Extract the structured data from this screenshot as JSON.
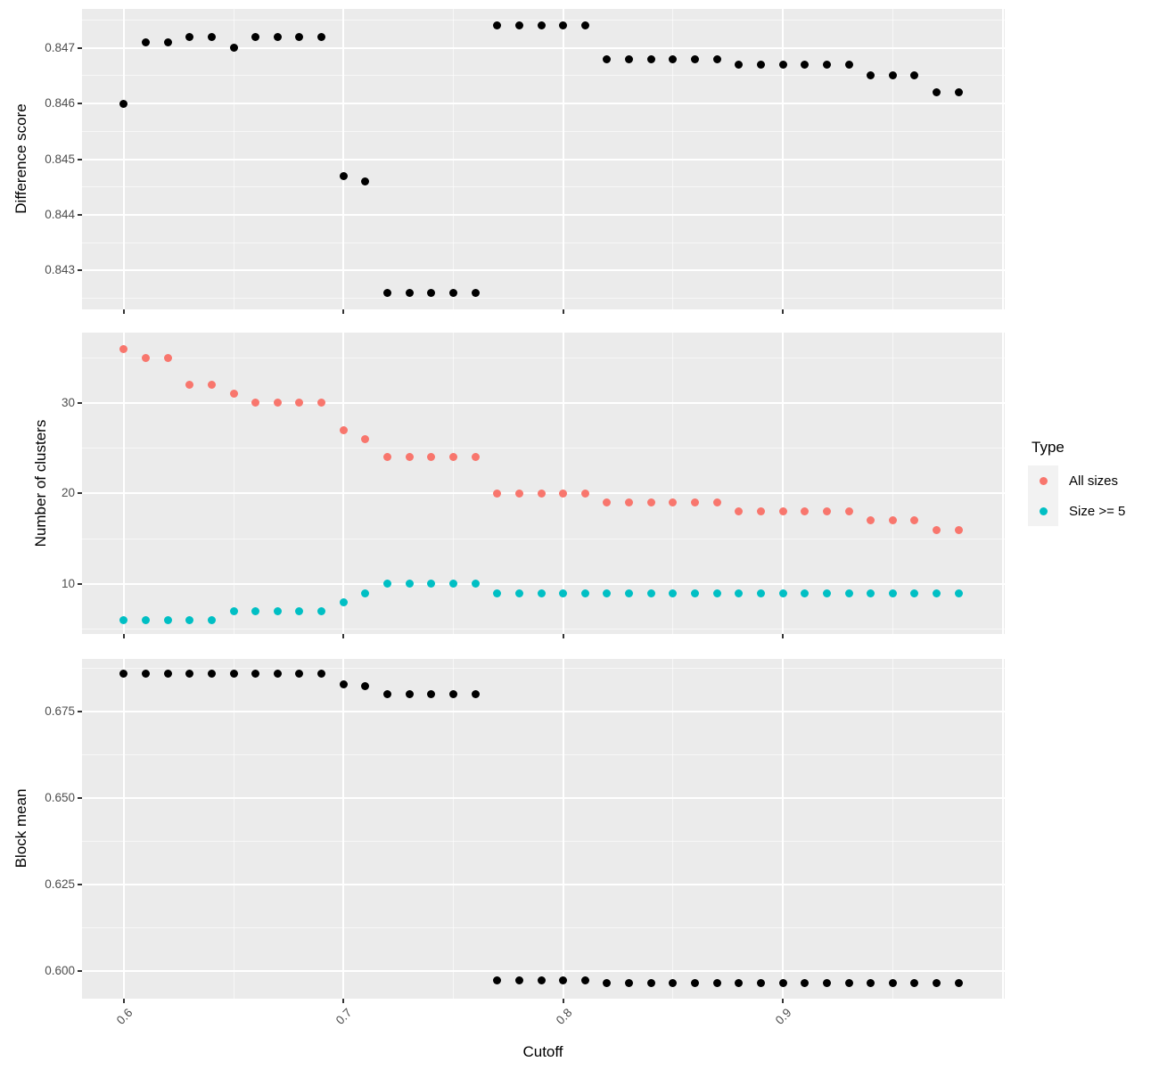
{
  "figure": {
    "bg": "#FFFFFF",
    "panel_bg": "#EBEBEB",
    "grid_color": "#FFFFFF",
    "tick_color": "#333333",
    "tick_label_color": "#4D4D4D",
    "point_color_default": "#000000"
  },
  "x_axis": {
    "label": "Cutoff",
    "lim": [
      0.581,
      1.001
    ],
    "tick_values": [
      0.6,
      0.7,
      0.8,
      0.9
    ],
    "tick_labels": [
      "0.6",
      "0.7",
      "0.8",
      "0.9"
    ],
    "major": [
      0.6,
      0.7,
      0.8,
      0.9,
      1.0
    ],
    "minor": [
      0.65,
      0.75,
      0.85,
      0.95
    ]
  },
  "legend": {
    "title": "Type",
    "entries": [
      {
        "label": "All sizes",
        "color": "#F8766D"
      },
      {
        "label": "Size >= 5",
        "color": "#00BFC4"
      }
    ]
  },
  "chart_data": [
    {
      "id": "difference_score",
      "type": "scatter",
      "ylabel": "Difference score",
      "ylim": [
        0.8423,
        0.8477
      ],
      "ytick_values": [
        0.843,
        0.844,
        0.845,
        0.846,
        0.847
      ],
      "ytick_labels": [
        "0.843",
        "0.844",
        "0.845",
        "0.846",
        "0.847"
      ],
      "yminor": [
        0.8425,
        0.8435,
        0.8445,
        0.8455,
        0.8465,
        0.8475
      ],
      "x": [
        0.6,
        0.61,
        0.62,
        0.63,
        0.64,
        0.65,
        0.66,
        0.67,
        0.68,
        0.69,
        0.7,
        0.71,
        0.72,
        0.73,
        0.74,
        0.75,
        0.76,
        0.77,
        0.78,
        0.79,
        0.8,
        0.81,
        0.82,
        0.83,
        0.84,
        0.85,
        0.86,
        0.87,
        0.88,
        0.89,
        0.9,
        0.91,
        0.92,
        0.93,
        0.94,
        0.95,
        0.96,
        0.97,
        0.98
      ],
      "series": [
        {
          "name": "Difference score",
          "color": "#000000",
          "values": [
            0.846,
            0.8471,
            0.8471,
            0.8472,
            0.8472,
            0.847,
            0.8472,
            0.8472,
            0.8472,
            0.8472,
            0.8447,
            0.8446,
            0.8426,
            0.8426,
            0.8426,
            0.8426,
            0.8426,
            0.8474,
            0.8474,
            0.8474,
            0.8474,
            0.8474,
            0.8468,
            0.8468,
            0.8468,
            0.8468,
            0.8468,
            0.8468,
            0.8467,
            0.8467,
            0.8467,
            0.8467,
            0.8467,
            0.8467,
            0.8465,
            0.8465,
            0.8465,
            0.8462,
            0.8462
          ]
        }
      ]
    },
    {
      "id": "number_of_clusters",
      "type": "scatter",
      "ylabel": "Number of clusters",
      "ylim": [
        4.48,
        37.78
      ],
      "ytick_values": [
        10,
        20,
        30
      ],
      "ytick_labels": [
        "10",
        "20",
        "30"
      ],
      "yminor": [
        5,
        15,
        25,
        35
      ],
      "x": [
        0.6,
        0.61,
        0.62,
        0.63,
        0.64,
        0.65,
        0.66,
        0.67,
        0.68,
        0.69,
        0.7,
        0.71,
        0.72,
        0.73,
        0.74,
        0.75,
        0.76,
        0.77,
        0.78,
        0.79,
        0.8,
        0.81,
        0.82,
        0.83,
        0.84,
        0.85,
        0.86,
        0.87,
        0.88,
        0.89,
        0.9,
        0.91,
        0.92,
        0.93,
        0.94,
        0.95,
        0.96,
        0.97,
        0.98
      ],
      "series": [
        {
          "name": "All sizes",
          "color": "#F8766D",
          "values": [
            36,
            35,
            35,
            32,
            32,
            31,
            30,
            30,
            30,
            30,
            27,
            26,
            24,
            24,
            24,
            24,
            24,
            20,
            20,
            20,
            20,
            20,
            19,
            19,
            19,
            19,
            19,
            19,
            18,
            18,
            18,
            18,
            18,
            18,
            17,
            17,
            17,
            16,
            16
          ]
        },
        {
          "name": "Size >= 5",
          "color": "#00BFC4",
          "values": [
            6,
            6,
            6,
            6,
            6,
            7,
            7,
            7,
            7,
            7,
            8,
            9,
            10,
            10,
            10,
            10,
            10,
            9,
            9,
            9,
            9,
            9,
            9,
            9,
            9,
            9,
            9,
            9,
            9,
            9,
            9,
            9,
            9,
            9,
            9,
            9,
            9,
            9,
            9
          ]
        }
      ]
    },
    {
      "id": "block_mean",
      "type": "scatter",
      "ylabel": "Block mean",
      "ylim": [
        0.592,
        0.6903
      ],
      "ytick_values": [
        0.6,
        0.625,
        0.65,
        0.675
      ],
      "ytick_labels": [
        "0.600",
        "0.625",
        "0.650",
        "0.675"
      ],
      "yminor": [
        0.6125,
        0.6375,
        0.6625,
        0.6875
      ],
      "x": [
        0.6,
        0.61,
        0.62,
        0.63,
        0.64,
        0.65,
        0.66,
        0.67,
        0.68,
        0.69,
        0.7,
        0.71,
        0.72,
        0.73,
        0.74,
        0.75,
        0.76,
        0.77,
        0.78,
        0.79,
        0.8,
        0.81,
        0.82,
        0.83,
        0.84,
        0.85,
        0.86,
        0.87,
        0.88,
        0.89,
        0.9,
        0.91,
        0.92,
        0.93,
        0.94,
        0.95,
        0.96,
        0.97,
        0.98
      ],
      "series": [
        {
          "name": "Block mean",
          "color": "#000000",
          "values": [
            0.686,
            0.686,
            0.686,
            0.686,
            0.686,
            0.686,
            0.686,
            0.686,
            0.686,
            0.686,
            0.683,
            0.6825,
            0.68,
            0.68,
            0.68,
            0.68,
            0.68,
            0.5972,
            0.5972,
            0.5972,
            0.5972,
            0.5972,
            0.5964,
            0.5964,
            0.5964,
            0.5964,
            0.5964,
            0.5964,
            0.5964,
            0.5964,
            0.5964,
            0.5964,
            0.5964,
            0.5964,
            0.5964,
            0.5964,
            0.5964,
            0.5964,
            0.5964
          ]
        }
      ]
    }
  ]
}
